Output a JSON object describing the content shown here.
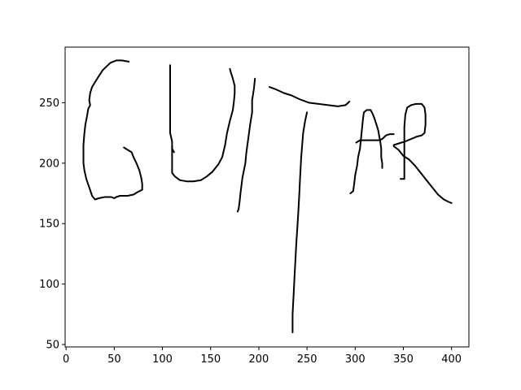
{
  "chart_data": {
    "type": "line",
    "title": "",
    "xlabel": "",
    "ylabel": "",
    "xlim": [
      -1,
      418
    ],
    "ylim": [
      48,
      296
    ],
    "grid": false,
    "legend": "none",
    "x_ticks": [
      0,
      50,
      100,
      150,
      200,
      250,
      300,
      350,
      400
    ],
    "y_ticks": [
      50,
      100,
      150,
      200,
      250
    ],
    "line_color": "#000000",
    "series": [
      {
        "points": [
          [
            65,
            284
          ],
          [
            58,
            285
          ],
          [
            52,
            285
          ],
          [
            46,
            283
          ],
          [
            42,
            280
          ],
          [
            38,
            277
          ],
          [
            34,
            272
          ],
          [
            30,
            267
          ],
          [
            27,
            263
          ],
          [
            25,
            258
          ],
          [
            24,
            252
          ],
          [
            25,
            248
          ],
          [
            23,
            245
          ],
          [
            22,
            240
          ],
          [
            20,
            232
          ],
          [
            19,
            225
          ],
          [
            18,
            215
          ],
          [
            18,
            207
          ],
          [
            18,
            200
          ],
          [
            19,
            194
          ],
          [
            21,
            187
          ],
          [
            24,
            180
          ],
          [
            27,
            173
          ],
          [
            30,
            170
          ],
          [
            34,
            171
          ],
          [
            40,
            172
          ],
          [
            47,
            172
          ],
          [
            50,
            171
          ],
          [
            52,
            172
          ],
          [
            56,
            173
          ],
          [
            64,
            173
          ],
          [
            70,
            174
          ],
          [
            74,
            176
          ],
          [
            79,
            178
          ],
          [
            79,
            183
          ],
          [
            78,
            188
          ],
          [
            76,
            194
          ],
          [
            73,
            200
          ],
          [
            70,
            205
          ],
          [
            68,
            209
          ],
          [
            64,
            211
          ],
          [
            60,
            213
          ]
        ]
      },
      {
        "points": [
          [
            108,
            281
          ],
          [
            108,
            270
          ],
          [
            108,
            255
          ],
          [
            108,
            240
          ],
          [
            108,
            225
          ],
          [
            110,
            218
          ],
          [
            110,
            212
          ],
          [
            112,
            209
          ]
        ]
      },
      {
        "points": [
          [
            110,
            214
          ],
          [
            110,
            205
          ],
          [
            110,
            192
          ],
          [
            113,
            189
          ],
          [
            118,
            186
          ],
          [
            125,
            185
          ],
          [
            132,
            185
          ],
          [
            140,
            186
          ],
          [
            146,
            189
          ],
          [
            152,
            193
          ],
          [
            158,
            199
          ],
          [
            162,
            205
          ],
          [
            165,
            215
          ],
          [
            167,
            225
          ],
          [
            170,
            235
          ],
          [
            173,
            244
          ],
          [
            174,
            250
          ],
          [
            175,
            258
          ],
          [
            175,
            264
          ],
          [
            173,
            270
          ],
          [
            171,
            275
          ],
          [
            170,
            278
          ]
        ]
      },
      {
        "points": [
          [
            196,
            270
          ],
          [
            195,
            262
          ],
          [
            193,
            252
          ],
          [
            193,
            242
          ],
          [
            191,
            232
          ],
          [
            189,
            220
          ],
          [
            187,
            208
          ],
          [
            186,
            200
          ],
          [
            183,
            188
          ],
          [
            181,
            175
          ],
          [
            180,
            168
          ],
          [
            179,
            162
          ],
          [
            178,
            160
          ]
        ]
      },
      {
        "points": [
          [
            211,
            263
          ],
          [
            218,
            261
          ],
          [
            226,
            258
          ],
          [
            234,
            256
          ],
          [
            242,
            253
          ],
          [
            252,
            250
          ],
          [
            262,
            249
          ],
          [
            272,
            248
          ],
          [
            282,
            247
          ],
          [
            290,
            248
          ],
          [
            294,
            251
          ]
        ]
      },
      {
        "points": [
          [
            250,
            242
          ],
          [
            248,
            235
          ],
          [
            246,
            225
          ],
          [
            245,
            215
          ],
          [
            244,
            205
          ],
          [
            243,
            190
          ],
          [
            242,
            175
          ],
          [
            241,
            160
          ],
          [
            240,
            147
          ],
          [
            239,
            135
          ],
          [
            238,
            120
          ],
          [
            237,
            105
          ],
          [
            236,
            90
          ],
          [
            235,
            75
          ],
          [
            235,
            60
          ]
        ]
      },
      {
        "points": [
          [
            295,
            175
          ],
          [
            298,
            177
          ],
          [
            299,
            183
          ],
          [
            300,
            190
          ],
          [
            302,
            198
          ],
          [
            303,
            205
          ],
          [
            305,
            212
          ],
          [
            306,
            220
          ],
          [
            307,
            228
          ],
          [
            308,
            236
          ],
          [
            309,
            242
          ],
          [
            312,
            244
          ],
          [
            316,
            244
          ],
          [
            318,
            241
          ],
          [
            320,
            237
          ],
          [
            322,
            232
          ],
          [
            324,
            227
          ],
          [
            325,
            222
          ],
          [
            326,
            218
          ],
          [
            327,
            212
          ],
          [
            327,
            205
          ],
          [
            328,
            200
          ],
          [
            328,
            196
          ]
        ]
      },
      {
        "points": [
          [
            301,
            217
          ],
          [
            305,
            219
          ],
          [
            312,
            219
          ],
          [
            318,
            219
          ],
          [
            325,
            219
          ],
          [
            328,
            220
          ],
          [
            332,
            223
          ],
          [
            336,
            224
          ],
          [
            340,
            224
          ]
        ]
      },
      {
        "points": [
          [
            340,
            215
          ],
          [
            344,
            216
          ],
          [
            348,
            217
          ],
          [
            352,
            218
          ],
          [
            358,
            220
          ],
          [
            364,
            222
          ],
          [
            369,
            223
          ],
          [
            372,
            225
          ],
          [
            373,
            232
          ],
          [
            373,
            240
          ],
          [
            372,
            246
          ],
          [
            369,
            249
          ],
          [
            363,
            249
          ],
          [
            358,
            248
          ],
          [
            354,
            246
          ],
          [
            352,
            240
          ],
          [
            351,
            230
          ],
          [
            351,
            218
          ],
          [
            351,
            205
          ],
          [
            351,
            195
          ],
          [
            351,
            187
          ],
          [
            347,
            187
          ]
        ]
      },
      {
        "points": [
          [
            340,
            214
          ],
          [
            345,
            211
          ],
          [
            350,
            206
          ],
          [
            356,
            203
          ],
          [
            362,
            198
          ],
          [
            368,
            192
          ],
          [
            374,
            186
          ],
          [
            380,
            180
          ],
          [
            386,
            174
          ],
          [
            392,
            170
          ],
          [
            397,
            168
          ],
          [
            400,
            167
          ]
        ]
      }
    ]
  }
}
